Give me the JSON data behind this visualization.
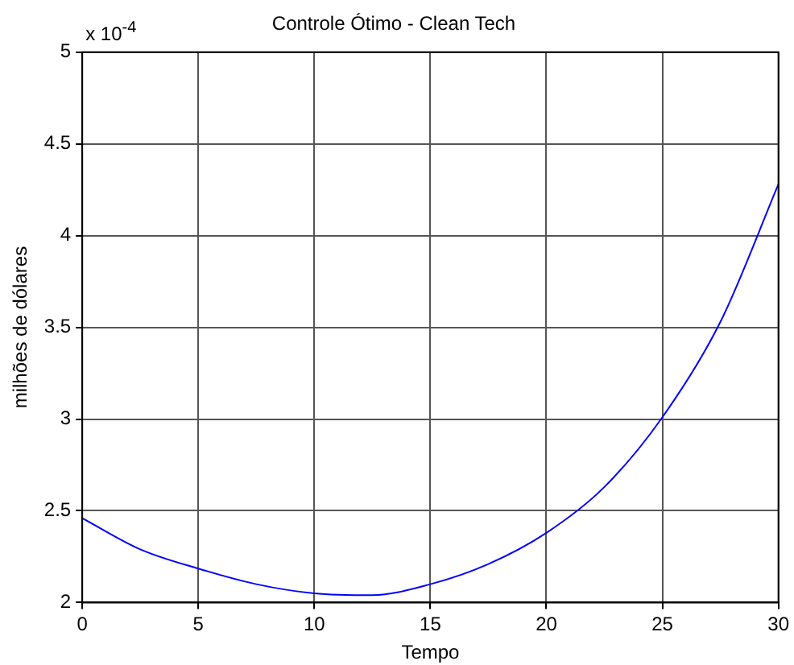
{
  "chart_data": {
    "type": "line",
    "title": "Controle Ótimo - Clean Tech",
    "xlabel": "Tempo",
    "ylabel": "milhões de dólares",
    "annotations": [
      "x 10$^{-4}$"
    ],
    "x": [
      0,
      2.5,
      5,
      7.5,
      10,
      12.5,
      15,
      17.5,
      20,
      22.5,
      25,
      27.5,
      30
    ],
    "series": [
      {
        "color": "#0000ff",
        "values": [
          2.46,
          2.29,
          2.185,
          2.1,
          2.05,
          2.04,
          2.1,
          2.21,
          2.38,
          2.63,
          3.01,
          3.53,
          4.28
        ]
      }
    ],
    "xlim": [
      0,
      30
    ],
    "xticks": [
      0,
      5,
      10,
      15,
      20,
      25,
      30
    ],
    "ylim": [
      2,
      5
    ],
    "yticks": [
      2,
      2.5,
      3,
      3.5,
      4,
      4.5,
      5
    ],
    "grid": true,
    "legend": false,
    "marker": "none",
    "line_style": "solid"
  }
}
